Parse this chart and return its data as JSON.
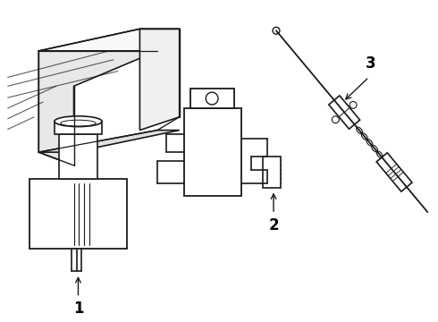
{
  "background_color": "#ffffff",
  "line_color": "#1a1a1a",
  "label_color": "#000000",
  "fig_width": 4.9,
  "fig_height": 3.6,
  "dpi": 100,
  "labels": [
    "1",
    "2",
    "3"
  ],
  "label_font_size": 12
}
